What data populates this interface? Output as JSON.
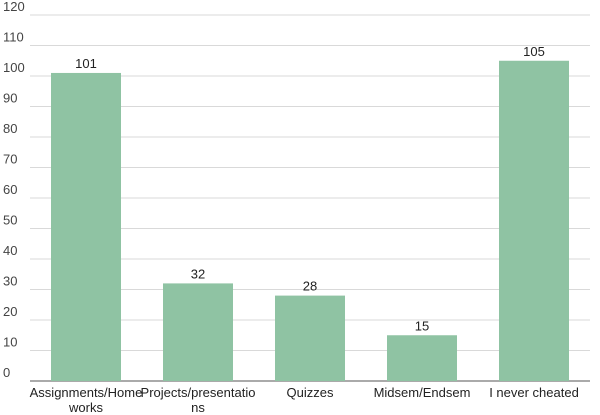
{
  "chart_data": {
    "type": "bar",
    "categories": [
      [
        "Assignments/Home",
        "works"
      ],
      [
        "Projects/presentatio",
        "ns"
      ],
      [
        "Quizzes"
      ],
      [
        "Midsem/Endsem"
      ],
      [
        "I never cheated"
      ]
    ],
    "values": [
      101,
      32,
      28,
      15,
      105
    ],
    "data_labels": [
      "101",
      "32",
      "28",
      "15",
      "105"
    ],
    "ylim": [
      0,
      120
    ],
    "yticks": [
      0,
      10,
      20,
      30,
      40,
      50,
      60,
      70,
      80,
      90,
      100,
      110,
      120
    ],
    "grid": true,
    "legend": "none",
    "bar_color": "#8fc3a3"
  }
}
